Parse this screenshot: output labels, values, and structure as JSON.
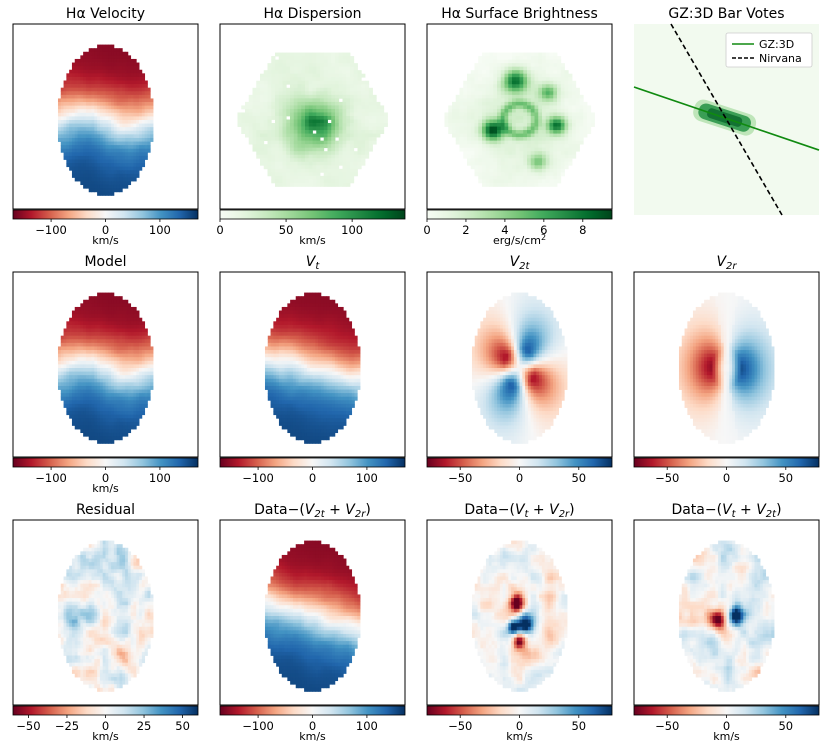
{
  "chart_data": [
    {
      "type": "heatmap",
      "title": "Hα Velocity",
      "map": "velocity",
      "cmap": "RdBu",
      "colorbar": {
        "label": "km/s",
        "vmin": -170,
        "vmax": 170,
        "ticks": [
          -100,
          0,
          100
        ]
      }
    },
    {
      "type": "heatmap",
      "title": "Hα Dispersion",
      "map": "dispersion",
      "cmap": "Greens",
      "colorbar": {
        "label": "km/s",
        "vmin": 0,
        "vmax": 140,
        "ticks": [
          0,
          50,
          100
        ]
      }
    },
    {
      "type": "heatmap",
      "title": "Hα Surface Brightness",
      "map": "brightness",
      "cmap": "Greens",
      "colorbar": {
        "label": "erg/s/cm²",
        "vmin": 0,
        "vmax": 9.5,
        "ticks": [
          0,
          2,
          4,
          6,
          8
        ]
      }
    },
    {
      "type": "heatmap",
      "title": "GZ:3D Bar Votes",
      "map": "barvotes",
      "cmap": "Greens",
      "legend": {
        "position": "top-right",
        "entries": [
          {
            "name": "GZ:3D",
            "color": "#108a10",
            "style": "solid"
          },
          {
            "name": "Nirvana",
            "color": "#000000",
            "style": "dashed"
          }
        ]
      }
    },
    {
      "type": "heatmap",
      "title": "Model",
      "map": "velocity",
      "cmap": "RdBu",
      "colorbar": {
        "label": "km/s",
        "vmin": -170,
        "vmax": 170,
        "ticks": [
          -100,
          0,
          100
        ]
      }
    },
    {
      "type": "heatmap",
      "title": "V_t",
      "map": "vt",
      "cmap": "RdBu",
      "colorbar": {
        "label": "",
        "vmin": -170,
        "vmax": 170,
        "ticks": [
          -100,
          0,
          100
        ]
      }
    },
    {
      "type": "heatmap",
      "title": "V_2t",
      "map": "v2t",
      "cmap": "RdBu",
      "colorbar": {
        "label": "",
        "vmin": -78,
        "vmax": 78,
        "ticks": [
          -50,
          0,
          50
        ]
      }
    },
    {
      "type": "heatmap",
      "title": "V_2r",
      "map": "v2r",
      "cmap": "RdBu",
      "colorbar": {
        "label": "",
        "vmin": -78,
        "vmax": 78,
        "ticks": [
          -50,
          0,
          50
        ]
      }
    },
    {
      "type": "heatmap",
      "title": "Residual",
      "map": "residual",
      "cmap": "RdBu",
      "colorbar": {
        "label": "km/s",
        "vmin": -60,
        "vmax": 60,
        "ticks": [
          -50,
          -25,
          0,
          25,
          50
        ]
      }
    },
    {
      "type": "heatmap",
      "title": "Data−(V_2t + V_2r)",
      "map": "velocity2",
      "cmap": "RdBu",
      "colorbar": {
        "label": "km/s",
        "vmin": -170,
        "vmax": 170,
        "ticks": [
          -100,
          0,
          100
        ]
      }
    },
    {
      "type": "heatmap",
      "title": "Data−(V_t + V_2r)",
      "map": "resid_v2t",
      "cmap": "RdBu",
      "colorbar": {
        "label": "km/s",
        "vmin": -78,
        "vmax": 78,
        "ticks": [
          -50,
          0,
          50
        ]
      }
    },
    {
      "type": "heatmap",
      "title": "Data−(V_t + V_2t)",
      "map": "resid_v2r",
      "cmap": "RdBu",
      "colorbar": {
        "label": "km/s",
        "vmin": -78,
        "vmax": 78,
        "ticks": [
          -50,
          0,
          50
        ]
      }
    }
  ]
}
